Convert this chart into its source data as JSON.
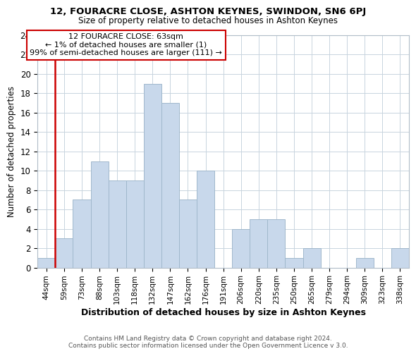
{
  "title": "12, FOURACRE CLOSE, ASHTON KEYNES, SWINDON, SN6 6PJ",
  "subtitle": "Size of property relative to detached houses in Ashton Keynes",
  "xlabel": "Distribution of detached houses by size in Ashton Keynes",
  "ylabel": "Number of detached properties",
  "footer_line1": "Contains HM Land Registry data © Crown copyright and database right 2024.",
  "footer_line2": "Contains public sector information licensed under the Open Government Licence v 3.0.",
  "bin_labels": [
    "44sqm",
    "59sqm",
    "73sqm",
    "88sqm",
    "103sqm",
    "118sqm",
    "132sqm",
    "147sqm",
    "162sqm",
    "176sqm",
    "191sqm",
    "206sqm",
    "220sqm",
    "235sqm",
    "250sqm",
    "265sqm",
    "279sqm",
    "294sqm",
    "309sqm",
    "323sqm",
    "338sqm"
  ],
  "bar_heights": [
    1,
    3,
    7,
    11,
    9,
    9,
    19,
    17,
    7,
    10,
    0,
    4,
    5,
    5,
    1,
    2,
    0,
    0,
    1,
    0,
    2
  ],
  "bar_color": "#c8d8eb",
  "bar_edge_color": "#a0b8cc",
  "ylim": [
    0,
    24
  ],
  "yticks": [
    0,
    2,
    4,
    6,
    8,
    10,
    12,
    14,
    16,
    18,
    20,
    22,
    24
  ],
  "redline_color": "#cc0000",
  "annotation_title": "12 FOURACRE CLOSE: 63sqm",
  "annotation_line1": "← 1% of detached houses are smaller (1)",
  "annotation_line2": "99% of semi-detached houses are larger (111) →",
  "annotation_box_facecolor": "#ffffff",
  "annotation_box_edgecolor": "#cc0000",
  "background_color": "#ffffff",
  "grid_color": "#c8d4de"
}
